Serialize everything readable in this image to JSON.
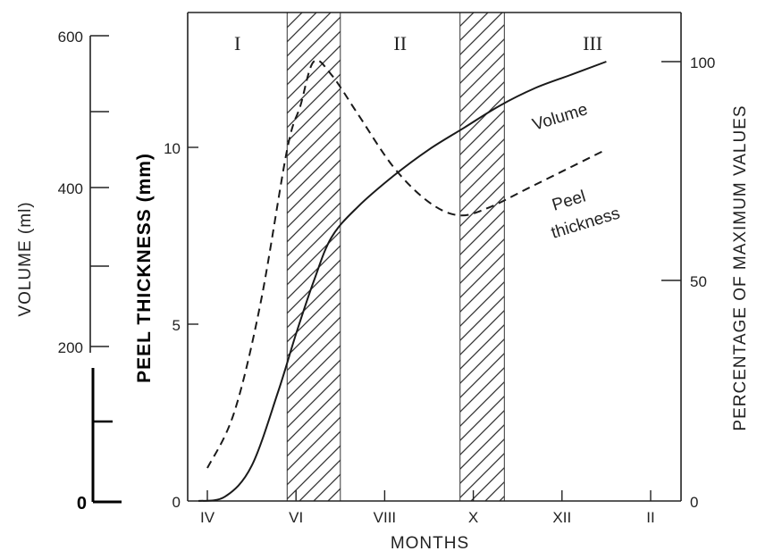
{
  "chart_data": {
    "type": "line",
    "xlabel": "MONTHS",
    "x_ticks": [
      "IV",
      "VI",
      "VIII",
      "X",
      "XII",
      "II"
    ],
    "axes": {
      "volume": {
        "label": "VOLUME (ml)",
        "ticks": [
          "200",
          "400",
          "600"
        ],
        "ylim": [
          0,
          600
        ]
      },
      "peel": {
        "label": "PEEL THICKNESS (mm)",
        "ticks": [
          "0",
          "5",
          "10"
        ],
        "ylim": [
          0,
          13.3
        ]
      },
      "percent": {
        "label": "PERCENTAGE OF MAXIMUM VALUES",
        "ticks": [
          "0",
          "50",
          "100"
        ],
        "ylim": [
          0,
          113
        ]
      },
      "inset_zero": "0"
    },
    "phases": [
      "I",
      "II",
      "III"
    ],
    "shaded_bands": [
      [
        5.8,
        7.0
      ],
      [
        9.7,
        10.7
      ]
    ],
    "series": [
      {
        "name": "Volume",
        "style": "solid",
        "points": [
          [
            3.8,
            0
          ],
          [
            4.4,
            1
          ],
          [
            5.0,
            8
          ],
          [
            5.6,
            25
          ],
          [
            6.0,
            38
          ],
          [
            6.4,
            50
          ],
          [
            6.8,
            60
          ],
          [
            7.4,
            67
          ],
          [
            8.2,
            74
          ],
          [
            9.0,
            80
          ],
          [
            9.8,
            85
          ],
          [
            10.6,
            90
          ],
          [
            11.4,
            94
          ],
          [
            12.2,
            97
          ],
          [
            13.0,
            100
          ]
        ],
        "label_lines": [
          "Volume"
        ]
      },
      {
        "name": "Peel thickness",
        "style": "dashed",
        "points": [
          [
            4.0,
            7.5
          ],
          [
            4.6,
            20
          ],
          [
            5.2,
            45
          ],
          [
            5.8,
            80
          ],
          [
            6.1,
            90
          ],
          [
            6.4,
            100
          ],
          [
            6.8,
            97
          ],
          [
            7.4,
            88
          ],
          [
            8.2,
            76
          ],
          [
            9.0,
            68
          ],
          [
            9.7,
            65
          ],
          [
            10.4,
            67
          ],
          [
            11.2,
            71
          ],
          [
            12.2,
            76
          ],
          [
            13.0,
            80
          ]
        ],
        "label_lines": [
          "Peel",
          "thickness"
        ]
      }
    ]
  }
}
